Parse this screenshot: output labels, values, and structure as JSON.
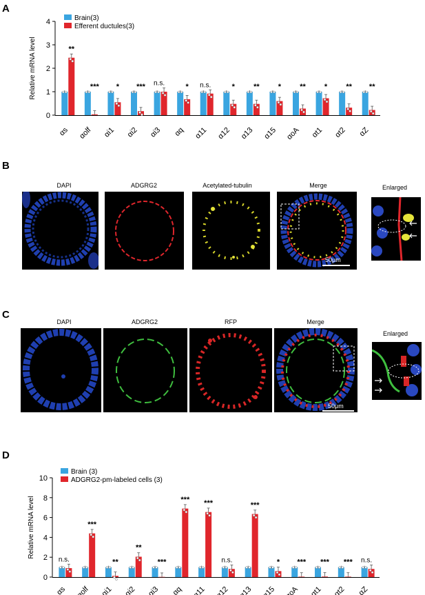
{
  "panel_labels": {
    "a": "A",
    "b": "B",
    "c": "C",
    "d": "D"
  },
  "chart_data": [
    {
      "type": "bar",
      "ylabel": "Relative mRNA level",
      "xlabel": "",
      "ylim": [
        0,
        4
      ],
      "yticks": [
        0,
        1,
        2,
        3,
        4
      ],
      "categories": [
        "αs",
        "αolf",
        "αi1",
        "αi2",
        "αi3",
        "αq",
        "α11",
        "α12",
        "α13",
        "α15",
        "αoA",
        "αt1",
        "αt2",
        "αZ"
      ],
      "series": [
        {
          "name": "Brain(3)",
          "color": "#3aa5e0",
          "values": [
            1,
            1,
            1,
            1,
            1,
            1,
            1,
            1,
            1,
            1,
            1,
            1,
            1,
            1
          ]
        },
        {
          "name": "Efferent ductules(3)",
          "color": "#e0262c",
          "values": [
            2.45,
            0.03,
            0.55,
            0.17,
            1.0,
            0.68,
            0.92,
            0.48,
            0.48,
            0.6,
            0.28,
            0.72,
            0.32,
            0.22
          ]
        }
      ],
      "significance": [
        "**",
        "***",
        "*",
        "***",
        "n.s.",
        "*",
        "n.s.",
        "*",
        "**",
        "*",
        "**",
        "*",
        "**",
        "**"
      ],
      "legend": "top-left",
      "grid": false
    },
    {
      "type": "bar",
      "ylabel": "Relative mRNA level",
      "xlabel": "",
      "ylim": [
        0,
        10
      ],
      "yticks": [
        0,
        2,
        4,
        6,
        8,
        10
      ],
      "categories": [
        "αs",
        "αolf",
        "αi1",
        "αi2",
        "αi3",
        "αq",
        "α11",
        "α12",
        "α13",
        "α15",
        "αoA",
        "αt1",
        "αt2",
        "αZ"
      ],
      "series": [
        {
          "name": "Brain (3)",
          "color": "#3aa5e0",
          "values": [
            1,
            1,
            1,
            1,
            1,
            1,
            1,
            1,
            1,
            1,
            1,
            1,
            1,
            1
          ]
        },
        {
          "name": "ADGRG2-pm-labeled cells (3)",
          "color": "#e0262c",
          "values": [
            0.9,
            4.4,
            0.12,
            2.05,
            0.02,
            6.9,
            6.55,
            0.82,
            6.35,
            0.6,
            0.04,
            0.05,
            0.04,
            0.82
          ]
        }
      ],
      "significance": [
        "n.s.",
        "***",
        "**",
        "**",
        "***",
        "***",
        "***",
        "n.s.",
        "***",
        "*",
        "***",
        "***",
        "***",
        "n.s."
      ],
      "legend": "top-left",
      "grid": false
    }
  ],
  "panel_b": {
    "titles": [
      "DAPI",
      "ADGRG2",
      "Acetylated-tubulin",
      "Merge"
    ],
    "enlarged": "Enlarged",
    "scale": "50μm"
  },
  "panel_c": {
    "titles": [
      "DAPI",
      "ADGRG2",
      "RFP",
      "Merge"
    ],
    "enlarged": "Enlarged",
    "scale": "50μm"
  }
}
